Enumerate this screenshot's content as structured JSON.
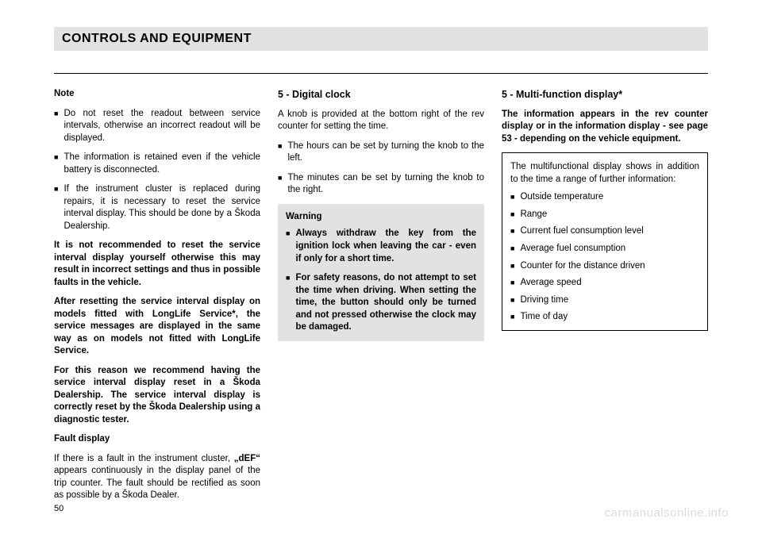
{
  "header": {
    "title": "CONTROLS AND EQUIPMENT"
  },
  "col1": {
    "note_label": "Note",
    "b1": "Do not reset the readout between service intervals, otherwise an incorrect readout will be displayed.",
    "b2": "The information is retained even if the vehicle battery is disconnected.",
    "b3": "If the instrument cluster is replaced during repairs, it is necessary to reset the service interval display. This should be done by a Škoda Dealership.",
    "p1": "It is not recommended to reset the service interval display yourself otherwise this may result in incorrect settings and thus in possible faults in the vehicle.",
    "p2": "After resetting the service interval display on models fitted with LongLife Service*, the service messages are displayed in the same way as on models not fitted with LongLife Service.",
    "p3": "For this reason we recommend having the service interval display reset in a Škoda Dealership. The service interval display is correctly reset by the Škoda Dealership using a diagnostic tester.",
    "fault_label": "Fault display",
    "fault_text_a": "If there is a fault in the instrument cluster, ",
    "fault_text_def": "„dEF“",
    "fault_text_b": " appears continuously in the display panel of the trip counter. The fault should be rectified as soon as possible by a Škoda Dealer."
  },
  "col2": {
    "title": "5  -  Digital clock",
    "p1": "A knob is provided at the bottom right of the rev counter for setting the time.",
    "b1": "The hours can be set by turning the knob to the left.",
    "b2": "The minutes can be set by turning the knob to the right.",
    "warn_label": "Warning",
    "w1": "Always withdraw the key from the ignition lock when leaving the car - even if only for a short time.",
    "w2": "For safety reasons, do not attempt to set the time when driving. When setting the time, the button should only be turned and not pressed otherwise the clock may be damaged."
  },
  "col3": {
    "title": "5  -  Multi-function display*",
    "intro": "The information appears in the rev counter display or in the information display - see page 53 - depending on the vehicle equipment.",
    "box_intro": "The multifunctional display shows in addition to the time a range of further information:",
    "i1": "Outside temperature",
    "i2": "Range",
    "i3": "Current fuel consumption level",
    "i4": "Average fuel consumption",
    "i5": "Counter for the distance driven",
    "i6": "Average speed",
    "i7": "Driving time",
    "i8": "Time of day"
  },
  "page_number": "50",
  "watermark": "carmanualsonline.info"
}
